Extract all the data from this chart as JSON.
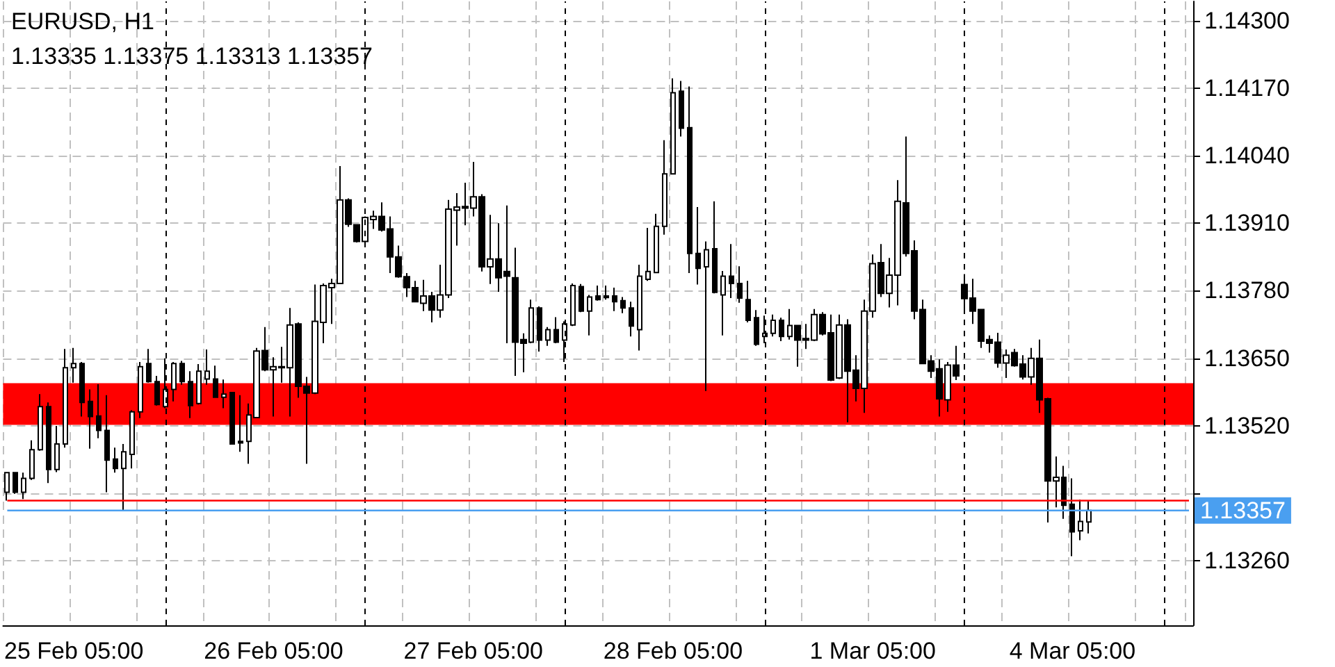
{
  "chart_data": {
    "type": "candlestick",
    "title": "EURUSD, H1",
    "subtitle": "1.13335 1.13375 1.13313 1.13357",
    "categories": [
      null,
      null,
      null,
      null,
      null,
      null,
      null,
      null,
      "25 Feb 05:00",
      null,
      null,
      null,
      null,
      null,
      null,
      null,
      null,
      null,
      null,
      null,
      null,
      null,
      null,
      null,
      null,
      null,
      null,
      null,
      null,
      null,
      null,
      null,
      "26 Feb 05:00",
      null,
      null,
      null,
      null,
      null,
      null,
      null,
      null,
      null,
      null,
      null,
      null,
      null,
      null,
      null,
      null,
      null,
      null,
      null,
      null,
      null,
      null,
      null,
      "27 Feb 05:00",
      null,
      null,
      null,
      null,
      null,
      null,
      null,
      null,
      null,
      null,
      null,
      null,
      null,
      null,
      null,
      null,
      null,
      null,
      null,
      null,
      null,
      null,
      null,
      "28 Feb 05:00",
      null,
      null,
      null,
      null,
      null,
      null,
      null,
      null,
      null,
      null,
      null,
      null,
      null,
      null,
      null,
      null,
      null,
      null,
      null,
      null,
      null,
      null,
      null,
      "1 Mar 05:00",
      null,
      null,
      null,
      null,
      null,
      null,
      null,
      null,
      null,
      null,
      null,
      null,
      null,
      null,
      null,
      null,
      null,
      null,
      null,
      null,
      null,
      null,
      null,
      "4 Mar 05:00",
      null,
      null,
      null,
      null,
      null,
      null,
      null,
      null,
      null,
      null,
      null,
      null,
      null,
      null
    ],
    "ohlc": [
      [
        1.13392,
        1.13431,
        1.13376,
        1.1343
      ],
      [
        1.1343,
        1.1343,
        1.13389,
        1.13392
      ],
      [
        1.13392,
        1.1343,
        1.13379,
        1.13419
      ],
      [
        1.13419,
        1.13492,
        1.13416,
        1.13474
      ],
      [
        1.13474,
        1.13581,
        1.13472,
        1.13557
      ],
      [
        1.13557,
        1.13565,
        1.1341,
        1.13436
      ],
      [
        1.13436,
        1.1352,
        1.13431,
        1.13485
      ],
      [
        1.13485,
        1.13668,
        1.13478,
        1.13632
      ],
      [
        1.13632,
        1.1367,
        1.13603,
        1.1364
      ],
      [
        1.1364,
        1.13643,
        1.13538,
        1.13565
      ],
      [
        1.13567,
        1.1359,
        1.13476,
        1.13538
      ],
      [
        1.13539,
        1.136,
        1.13496,
        1.13511
      ],
      [
        1.13511,
        1.13579,
        1.13392,
        1.13454
      ],
      [
        1.13456,
        1.13478,
        1.1343,
        1.13438
      ],
      [
        1.13438,
        1.13485,
        1.13358,
        1.1347
      ],
      [
        1.13465,
        1.1355,
        1.13438,
        1.13547
      ],
      [
        1.13547,
        1.13643,
        1.13535,
        1.13634
      ],
      [
        1.1364,
        1.13668,
        1.13603,
        1.13605
      ],
      [
        1.13605,
        1.13616,
        1.13559,
        1.13561
      ],
      [
        1.13557,
        1.1365,
        1.13554,
        1.1359
      ],
      [
        1.1359,
        1.13643,
        1.13567,
        1.1364
      ],
      [
        1.1364,
        1.13645,
        1.13599,
        1.13605
      ],
      [
        1.13605,
        1.13625,
        1.13535,
        1.13559
      ],
      [
        1.13563,
        1.13639,
        1.13561,
        1.13625
      ],
      [
        1.1361,
        1.13667,
        1.13599,
        1.13625
      ],
      [
        1.1361,
        1.13636,
        1.13574,
        1.13575
      ],
      [
        1.13575,
        1.13609,
        1.13554,
        1.13581
      ],
      [
        1.13584,
        1.13585,
        1.13485,
        1.13485
      ],
      [
        1.1349,
        1.13579,
        1.1347,
        1.13487
      ],
      [
        1.1349,
        1.13563,
        1.13447,
        1.13541
      ],
      [
        1.13536,
        1.1367,
        1.13536,
        1.13664
      ],
      [
        1.13665,
        1.1371,
        1.13625,
        1.13628
      ],
      [
        1.13628,
        1.13652,
        1.13538,
        1.13634
      ],
      [
        1.13634,
        1.13672,
        1.13603,
        1.13632
      ],
      [
        1.13632,
        1.13747,
        1.13538,
        1.13714
      ],
      [
        1.13716,
        1.13719,
        1.13574,
        1.13596
      ],
      [
        1.13596,
        1.13614,
        1.13447,
        1.13583
      ],
      [
        1.13583,
        1.13792,
        1.13581,
        1.13721
      ],
      [
        1.13719,
        1.13794,
        1.13679,
        1.1379
      ],
      [
        1.13786,
        1.13803,
        1.13716,
        1.13794
      ],
      [
        1.13794,
        1.1402,
        1.13793,
        1.13955
      ],
      [
        1.13955,
        1.13958,
        1.13903,
        1.13908
      ],
      [
        1.13907,
        1.13908,
        1.13873,
        1.13875
      ],
      [
        1.13875,
        1.13923,
        1.13864,
        1.13921
      ],
      [
        1.13917,
        1.13934,
        1.13899,
        1.13923
      ],
      [
        1.13923,
        1.1395,
        1.13894,
        1.13897
      ],
      [
        1.13899,
        1.13923,
        1.13814,
        1.13845
      ],
      [
        1.13845,
        1.13867,
        1.13805,
        1.13807
      ],
      [
        1.13807,
        1.13814,
        1.13768,
        1.13786
      ],
      [
        1.13786,
        1.13799,
        1.13759,
        1.13759
      ],
      [
        1.13756,
        1.13801,
        1.13741,
        1.1377
      ],
      [
        1.1377,
        1.13778,
        1.13719,
        1.13743
      ],
      [
        1.13743,
        1.1383,
        1.13728,
        1.13772
      ],
      [
        1.13772,
        1.13955,
        1.13766,
        1.13937
      ],
      [
        1.13935,
        1.13968,
        1.13867,
        1.13941
      ],
      [
        1.13942,
        1.13988,
        1.13906,
        1.13939
      ],
      [
        1.13939,
        1.14028,
        1.13923,
        1.13961
      ],
      [
        1.13961,
        1.13966,
        1.13817,
        1.13826
      ],
      [
        1.13826,
        1.13926,
        1.13793,
        1.13841
      ],
      [
        1.13841,
        1.1391,
        1.13778,
        1.13805
      ],
      [
        1.13817,
        1.13944,
        1.13679,
        1.13808
      ],
      [
        1.13805,
        1.13863,
        1.13616,
        1.13681
      ],
      [
        1.13686,
        1.13698,
        1.13623,
        1.13679
      ],
      [
        1.13681,
        1.13763,
        1.13679,
        1.13747
      ],
      [
        1.13747,
        1.1375,
        1.13663,
        1.13685
      ],
      [
        1.13685,
        1.1371,
        1.13674,
        1.13705
      ],
      [
        1.13705,
        1.13729,
        1.13679,
        1.13681
      ],
      [
        1.13685,
        1.13721,
        1.13643,
        1.13716
      ],
      [
        1.13714,
        1.13794,
        1.13712,
        1.1379
      ],
      [
        1.13788,
        1.13793,
        1.13739,
        1.13741
      ],
      [
        1.13741,
        1.13772,
        1.13694,
        1.13768
      ],
      [
        1.1377,
        1.1379,
        1.13761,
        1.13763
      ],
      [
        1.1377,
        1.1379,
        1.13763,
        1.13767
      ],
      [
        1.1377,
        1.13786,
        1.13741,
        1.13759
      ],
      [
        1.13761,
        1.13768,
        1.13737,
        1.13747
      ],
      [
        1.13747,
        1.13759,
        1.13692,
        1.13712
      ],
      [
        1.13705,
        1.1383,
        1.13665,
        1.13808
      ],
      [
        1.13802,
        1.13901,
        1.13799,
        1.13817
      ],
      [
        1.13815,
        1.13928,
        1.13814,
        1.13904
      ],
      [
        1.13904,
        1.1407,
        1.13888,
        1.14005
      ],
      [
        1.14005,
        1.14189,
        1.14004,
        1.14161
      ],
      [
        1.14164,
        1.14184,
        1.14077,
        1.14093
      ],
      [
        1.14094,
        1.14173,
        1.13814,
        1.13852
      ],
      [
        1.13852,
        1.13941,
        1.13792,
        1.13823
      ],
      [
        1.13826,
        1.13875,
        1.13587,
        1.13859
      ],
      [
        1.13861,
        1.13952,
        1.13775,
        1.13777
      ],
      [
        1.13772,
        1.13818,
        1.13694,
        1.13808
      ],
      [
        1.13808,
        1.1387,
        1.13766,
        1.13794
      ],
      [
        1.13794,
        1.13827,
        1.13757,
        1.13766
      ],
      [
        1.13763,
        1.13799,
        1.13719,
        1.13723
      ],
      [
        1.13728,
        1.13743,
        1.13674,
        1.13677
      ],
      [
        1.13692,
        1.13732,
        1.13679,
        1.13698
      ],
      [
        1.13698,
        1.13734,
        1.13692,
        1.13723
      ],
      [
        1.13723,
        1.13728,
        1.13683,
        1.13692
      ],
      [
        1.13692,
        1.13745,
        1.13686,
        1.13713
      ],
      [
        1.13713,
        1.13714,
        1.13634,
        1.13685
      ],
      [
        1.13688,
        1.13716,
        1.13668,
        1.13685
      ],
      [
        1.13685,
        1.13745,
        1.13683,
        1.13734
      ],
      [
        1.13734,
        1.13739,
        1.13694,
        1.13697
      ],
      [
        1.13699,
        1.13734,
        1.13606,
        1.13608
      ],
      [
        1.13612,
        1.13734,
        1.1361,
        1.13714
      ],
      [
        1.13714,
        1.13725,
        1.13527,
        1.13625
      ],
      [
        1.13627,
        1.13656,
        1.13567,
        1.13592
      ],
      [
        1.13592,
        1.13763,
        1.13545,
        1.13741
      ],
      [
        1.13741,
        1.1385,
        1.13728,
        1.13832
      ],
      [
        1.13834,
        1.1387,
        1.13768,
        1.13775
      ],
      [
        1.13775,
        1.13843,
        1.13748,
        1.1381
      ],
      [
        1.1381,
        1.13993,
        1.13752,
        1.13952
      ],
      [
        1.13949,
        1.14077,
        1.13846,
        1.13852
      ],
      [
        1.13857,
        1.13877,
        1.13725,
        1.13741
      ],
      [
        1.13744,
        1.13763,
        1.13639,
        1.1364
      ],
      [
        1.13645,
        1.13656,
        1.13612,
        1.13625
      ],
      [
        1.1363,
        1.13648,
        1.13538,
        1.13572
      ],
      [
        1.1357,
        1.13643,
        1.13547,
        1.13637
      ],
      [
        1.13637,
        1.13674,
        1.13608,
        1.13616
      ],
      [
        1.13792,
        1.13812,
        1.13738,
        1.13765
      ],
      [
        1.13766,
        1.13803,
        1.13716,
        1.13741
      ],
      [
        1.13744,
        1.13745,
        1.1367,
        1.13683
      ],
      [
        1.13686,
        1.13694,
        1.13661,
        1.13679
      ],
      [
        1.13681,
        1.13699,
        1.13632,
        1.13641
      ],
      [
        1.13641,
        1.13667,
        1.13612,
        1.13656
      ],
      [
        1.13661,
        1.13668,
        1.13634,
        1.13636
      ],
      [
        1.13639,
        1.13656,
        1.13609,
        1.13614
      ],
      [
        1.13614,
        1.1367,
        1.13599,
        1.1365
      ],
      [
        1.1365,
        1.13686,
        1.13545,
        1.1357
      ],
      [
        1.13572,
        1.13574,
        1.13334,
        1.13414
      ],
      [
        1.13414,
        1.13461,
        1.13363,
        1.13421
      ],
      [
        1.13421,
        1.13443,
        1.13341,
        1.13367
      ],
      [
        1.13369,
        1.13419,
        1.13269,
        1.13316
      ],
      [
        1.13318,
        1.13378,
        1.133,
        1.13336
      ],
      [
        1.13335,
        1.13375,
        1.13313,
        1.13357
      ],
      null,
      null,
      null,
      null,
      null,
      null,
      null,
      null,
      null,
      null,
      null,
      null
    ],
    "ylim": [
      1.13136,
      1.14337
    ],
    "yticks": [
      {
        "value": 1.1326,
        "label": "1.13260"
      },
      {
        "value": 1.1339,
        "label": null
      },
      {
        "value": 1.1352,
        "label": "1.13520"
      },
      {
        "value": 1.1365,
        "label": "1.13650"
      },
      {
        "value": 1.1378,
        "label": "1.13780"
      },
      {
        "value": 1.1391,
        "label": "1.13910"
      },
      {
        "value": 1.1404,
        "label": "1.14040"
      },
      {
        "value": 1.1417,
        "label": "1.14170"
      },
      {
        "value": 1.143,
        "label": "1.14300"
      }
    ],
    "grid": true,
    "bands": [
      {
        "axis": "y",
        "from": 1.13522,
        "to": 1.13602,
        "color": "#ff0000"
      }
    ],
    "ref_lines": [
      {
        "axis": "y",
        "value": 1.13376,
        "color": "#ff0000",
        "line_style": "solid"
      },
      {
        "axis": "y",
        "value": 1.13357,
        "label": "1.13357",
        "color": "#4a9ff0",
        "line_style": "solid"
      }
    ]
  }
}
